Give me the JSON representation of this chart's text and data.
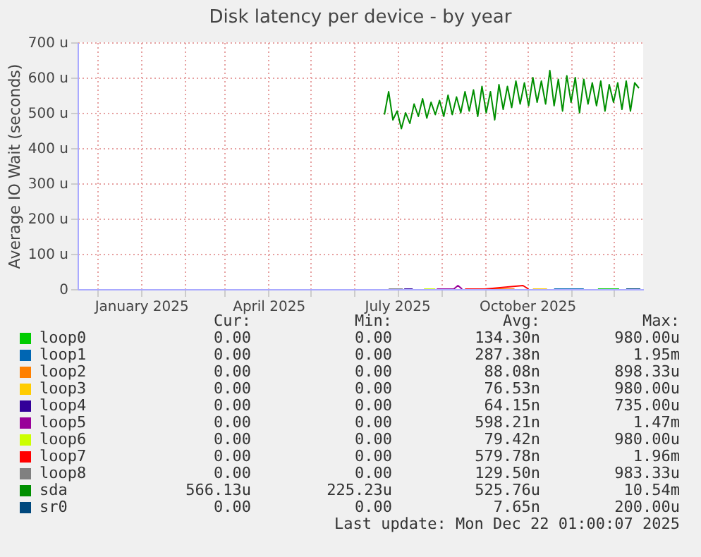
{
  "chart_data": {
    "type": "line",
    "title": "Disk latency per device - by year",
    "ylabel": "Average IO Wait (seconds)",
    "xlim": [
      "2024-11-17",
      "2025-12-22"
    ],
    "xticks": [
      {
        "value": "2024-12-01",
        "label": null
      },
      {
        "value": "2025-01-01",
        "label": "January 2025"
      },
      {
        "value": "2025-02-01",
        "label": null
      },
      {
        "value": "2025-03-01",
        "label": null
      },
      {
        "value": "2025-04-01",
        "label": "April 2025"
      },
      {
        "value": "2025-05-01",
        "label": null
      },
      {
        "value": "2025-06-01",
        "label": null
      },
      {
        "value": "2025-07-01",
        "label": "July 2025"
      },
      {
        "value": "2025-08-01",
        "label": null
      },
      {
        "value": "2025-09-01",
        "label": null
      },
      {
        "value": "2025-10-01",
        "label": "October 2025"
      },
      {
        "value": "2025-11-01",
        "label": null
      },
      {
        "value": "2025-12-01",
        "label": null
      }
    ],
    "ylim": [
      0,
      700
    ],
    "yticks": [
      0,
      {
        "value": 100,
        "label": "100 u"
      },
      {
        "value": 200,
        "label": "200 u"
      },
      {
        "value": 300,
        "label": "300 u"
      },
      {
        "value": 400,
        "label": "400 u"
      },
      {
        "value": 500,
        "label": "500 u"
      },
      {
        "value": 600,
        "label": "600 u"
      },
      {
        "value": 700,
        "label": "700 u"
      }
    ],
    "grid": true,
    "legend": "bottom",
    "series": [
      {
        "name": "loop0",
        "color": "#00cc00",
        "x": [
          "2025-11-20",
          "2025-12-05"
        ],
        "values": [
          0,
          0
        ]
      },
      {
        "name": "loop1",
        "color": "#0066b3",
        "x": [
          "2025-10-20",
          "2025-11-10"
        ],
        "values": [
          0,
          0
        ]
      },
      {
        "name": "loop2",
        "color": "#ff8000",
        "x": [
          "2025-09-06",
          "2025-09-22"
        ],
        "values": [
          0,
          0
        ]
      },
      {
        "name": "loop3",
        "color": "#ffcc00",
        "x": [
          "2025-10-05",
          "2025-10-15"
        ],
        "values": [
          0,
          0
        ]
      },
      {
        "name": "loop4",
        "color": "#330099",
        "x": [
          "2025-07-06",
          "2025-07-12"
        ],
        "values": [
          0,
          0
        ]
      },
      {
        "name": "loop5",
        "color": "#990099",
        "x": [
          "2025-07-29",
          "2025-08-10",
          "2025-08-13",
          "2025-08-16"
        ],
        "values": [
          0,
          0,
          10,
          0
        ]
      },
      {
        "name": "loop6",
        "color": "#ccff00",
        "x": [
          "2025-07-20",
          "2025-07-28"
        ],
        "values": [
          0,
          0
        ]
      },
      {
        "name": "loop7",
        "color": "#ff0000",
        "x": [
          "2025-08-18",
          "2025-09-01",
          "2025-09-28",
          "2025-10-02"
        ],
        "values": [
          0,
          0,
          10,
          0
        ]
      },
      {
        "name": "loop8",
        "color": "#808080",
        "x": [
          "2025-06-25",
          "2025-07-05"
        ],
        "values": [
          0,
          0
        ]
      },
      {
        "name": "sda",
        "color": "#008f00",
        "x": [
          "2025-06-22",
          "2025-06-25",
          "2025-06-28",
          "2025-07-01",
          "2025-07-04",
          "2025-07-07",
          "2025-07-10",
          "2025-07-13",
          "2025-07-16",
          "2025-07-19",
          "2025-07-22",
          "2025-07-25",
          "2025-07-28",
          "2025-07-31",
          "2025-08-03",
          "2025-08-06",
          "2025-08-09",
          "2025-08-12",
          "2025-08-15",
          "2025-08-18",
          "2025-08-21",
          "2025-08-24",
          "2025-08-27",
          "2025-08-30",
          "2025-09-02",
          "2025-09-05",
          "2025-09-08",
          "2025-09-11",
          "2025-09-14",
          "2025-09-17",
          "2025-09-20",
          "2025-09-23",
          "2025-09-26",
          "2025-09-29",
          "2025-10-02",
          "2025-10-05",
          "2025-10-08",
          "2025-10-11",
          "2025-10-14",
          "2025-10-17",
          "2025-10-20",
          "2025-10-23",
          "2025-10-26",
          "2025-10-29",
          "2025-11-01",
          "2025-11-04",
          "2025-11-07",
          "2025-11-10",
          "2025-11-13",
          "2025-11-16",
          "2025-11-19",
          "2025-11-22",
          "2025-11-25",
          "2025-11-28",
          "2025-12-01",
          "2025-12-04",
          "2025-12-07",
          "2025-12-10",
          "2025-12-13",
          "2025-12-16",
          "2025-12-19"
        ],
        "values": [
          495,
          560,
          480,
          505,
          455,
          500,
          470,
          525,
          490,
          540,
          485,
          530,
          495,
          535,
          490,
          550,
          495,
          545,
          500,
          560,
          505,
          565,
          490,
          575,
          500,
          560,
          480,
          580,
          510,
          575,
          515,
          590,
          525,
          585,
          520,
          600,
          530,
          590,
          525,
          620,
          520,
          595,
          505,
          605,
          530,
          600,
          500,
          595,
          525,
          585,
          520,
          590,
          505,
          580,
          530,
          585,
          510,
          590,
          505,
          585,
          570
        ]
      },
      {
        "name": "sr0",
        "color": "#00487d",
        "x": [
          "2025-12-10",
          "2025-12-20"
        ],
        "values": [
          0,
          0
        ]
      }
    ],
    "annotations": [
      "Cur:",
      "Min:",
      "Avg:",
      "Max:",
      "0.00",
      "0.00",
      "134.30n",
      "980.00u",
      "0.00",
      "0.00",
      "287.38n",
      "1.95m",
      "0.00",
      "0.00",
      "88.08n",
      "898.33u",
      "0.00",
      "0.00",
      "76.53n",
      "980.00u",
      "0.00",
      "0.00",
      "64.15n",
      "735.00u",
      "0.00",
      "0.00",
      "598.21n",
      "1.47m",
      "0.00",
      "0.00",
      "79.42n",
      "980.00u",
      "0.00",
      "0.00",
      "579.78n",
      "1.96m",
      "0.00",
      "0.00",
      "129.50n",
      "983.33u",
      "566.13u",
      "225.23u",
      "525.76u",
      "10.54m",
      "0.00",
      "0.00",
      "7.65n",
      "200.00u",
      "Last update: Mon Dec 22 01:00:07 2025"
    ]
  }
}
